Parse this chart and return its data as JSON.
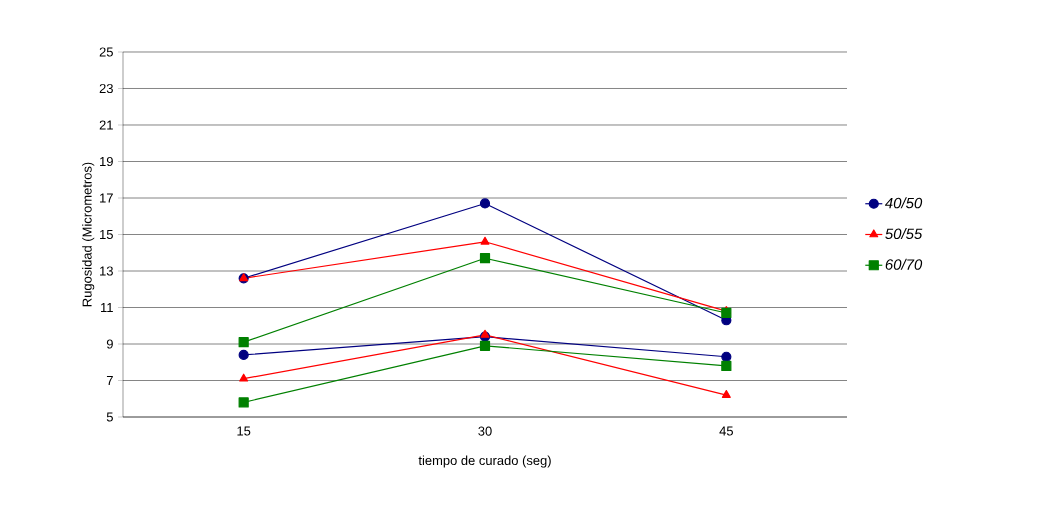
{
  "chart_data": {
    "type": "line",
    "xlabel": "tiempo de curado (seg)",
    "ylabel": "Rugosidad (Micrometros)",
    "categories": [
      "15",
      "30",
      "45"
    ],
    "series": [
      {
        "name": "40/50",
        "color": "#000080",
        "marker": "circle",
        "values": [
          12.6,
          16.7,
          10.3
        ]
      },
      {
        "color": "#000080",
        "marker": "circle",
        "values": [
          8.4,
          9.4,
          8.3
        ]
      },
      {
        "name": "50/55",
        "color": "#ff0000",
        "marker": "triangle",
        "values": [
          12.6,
          14.6,
          10.8
        ]
      },
      {
        "color": "#ff0000",
        "marker": "triangle",
        "values": [
          7.1,
          9.5,
          6.2
        ]
      },
      {
        "name": "60/70",
        "color": "#008000",
        "marker": "square",
        "values": [
          9.1,
          13.7,
          10.7
        ]
      },
      {
        "color": "#008000",
        "marker": "square",
        "values": [
          5.8,
          8.9,
          7.8
        ]
      }
    ],
    "ylim": [
      5,
      25
    ],
    "yticks": [
      5,
      7,
      9,
      11,
      13,
      15,
      17,
      19,
      21,
      23,
      25
    ],
    "grid": "y",
    "legend": "right",
    "line_style": "solid"
  }
}
